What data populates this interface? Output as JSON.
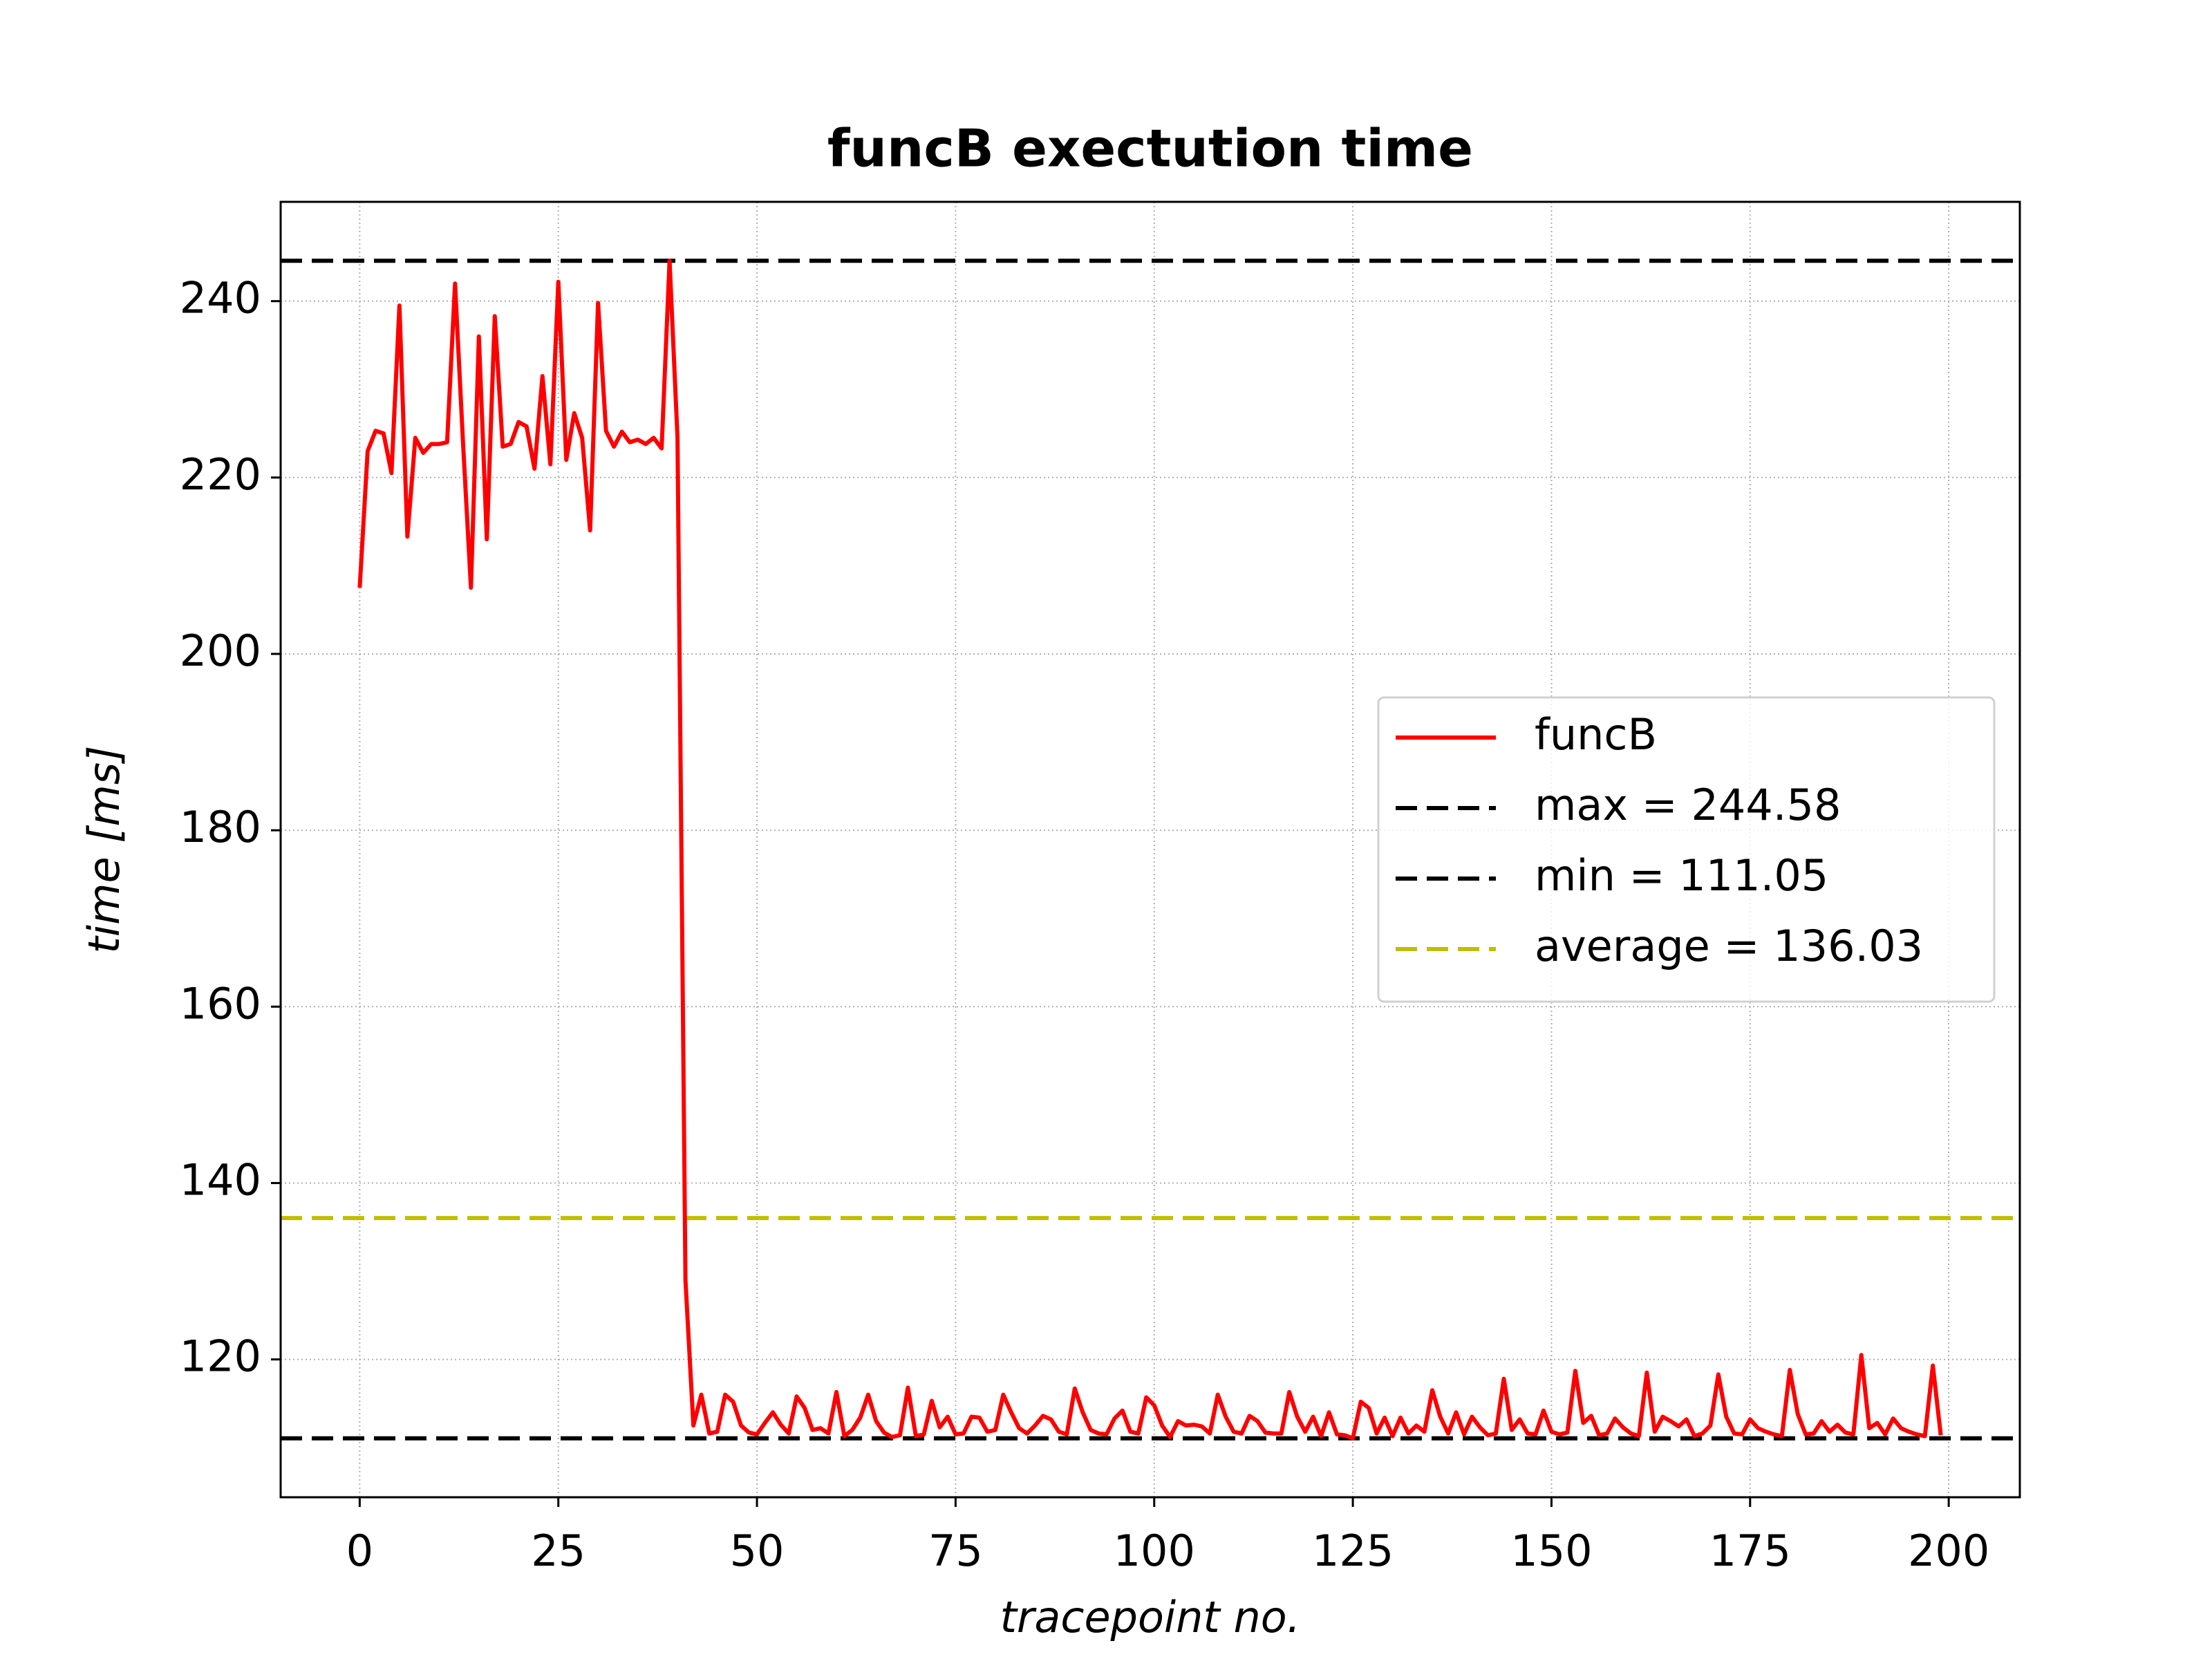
{
  "chart_data": {
    "type": "line",
    "title": "funcB exectution time",
    "xlabel": "tracepoint no.",
    "ylabel": "time [ms]",
    "xlim": [
      -9.95,
      208.95
    ],
    "ylim": [
      104.37,
      251.26
    ],
    "xticks": [
      0,
      25,
      50,
      75,
      100,
      125,
      150,
      175,
      200
    ],
    "yticks": [
      120,
      140,
      160,
      180,
      200,
      220,
      240
    ],
    "grid": true,
    "legend": "center right",
    "series": [
      {
        "name": "funcB",
        "color": "#ff0000",
        "values": [
          207.5,
          223,
          225.3,
          225,
          220.5,
          239.5,
          213.3,
          224.5,
          222.8,
          223.8,
          223.8,
          224,
          242,
          224,
          207.5,
          236,
          213,
          238.3,
          223.5,
          223.8,
          226.3,
          225.8,
          221,
          231.5,
          221.5,
          242.2,
          222,
          227.3,
          224.5,
          214,
          239.8,
          225.3,
          223.5,
          225.2,
          224,
          224.3,
          223.8,
          224.5,
          223.3,
          244.58,
          224.5,
          129,
          112.5,
          116,
          111.6,
          111.8,
          116,
          115.2,
          112.5,
          111.7,
          111.5,
          112.8,
          114,
          112.6,
          111.6,
          115.8,
          114.5,
          112,
          112.2,
          111.6,
          116.3,
          111.3,
          112,
          113.4,
          116,
          113,
          111.7,
          111.2,
          111.4,
          116.8,
          111.3,
          111.5,
          115.3,
          112.3,
          113.5,
          111.5,
          111.6,
          113.5,
          113.4,
          111.8,
          112,
          116,
          114,
          112.2,
          111.6,
          112.5,
          113.6,
          113.2,
          111.8,
          111.5,
          116.7,
          114,
          112,
          111.6,
          111.5,
          113.3,
          114.2,
          111.8,
          111.6,
          115.7,
          114.8,
          112.5,
          111.2,
          113,
          112.5,
          112.6,
          112.4,
          111.6,
          116,
          113.5,
          111.8,
          111.6,
          113.6,
          113,
          111.7,
          111.6,
          111.6,
          116.3,
          113.5,
          111.8,
          113.5,
          111.3,
          114,
          111.5,
          111.4,
          111.05,
          115.2,
          114.5,
          111.6,
          113.4,
          111.3,
          113.4,
          111.6,
          112.5,
          111.8,
          116.5,
          113.5,
          111.6,
          114,
          111.5,
          113.5,
          112.3,
          111.4,
          111.6,
          117.8,
          112,
          113.2,
          111.6,
          111.5,
          114.2,
          111.8,
          111.5,
          111.7,
          118.7,
          112.8,
          113.6,
          111.4,
          111.6,
          113.3,
          112.3,
          111.6,
          111.3,
          118.5,
          111.8,
          113.5,
          113,
          112.4,
          113.2,
          111.3,
          111.6,
          112.5,
          118.3,
          113.5,
          111.6,
          111.5,
          113.2,
          112.2,
          111.8,
          111.5,
          111.3,
          118.8,
          113.8,
          111.5,
          111.6,
          113,
          111.8,
          112.6,
          111.7,
          111.5,
          120.5,
          112.2,
          112.8,
          111.5,
          113.3,
          112.2,
          111.8,
          111.5,
          111.3,
          119.3,
          111.4
        ]
      }
    ],
    "hlines": [
      {
        "name": "max = 244.58",
        "value": 244.58,
        "color": "#000000"
      },
      {
        "name": "min = 111.05",
        "value": 111.05,
        "color": "#000000"
      },
      {
        "name": "average = 136.03",
        "value": 136.03,
        "color": "#bfbf00"
      }
    ]
  }
}
